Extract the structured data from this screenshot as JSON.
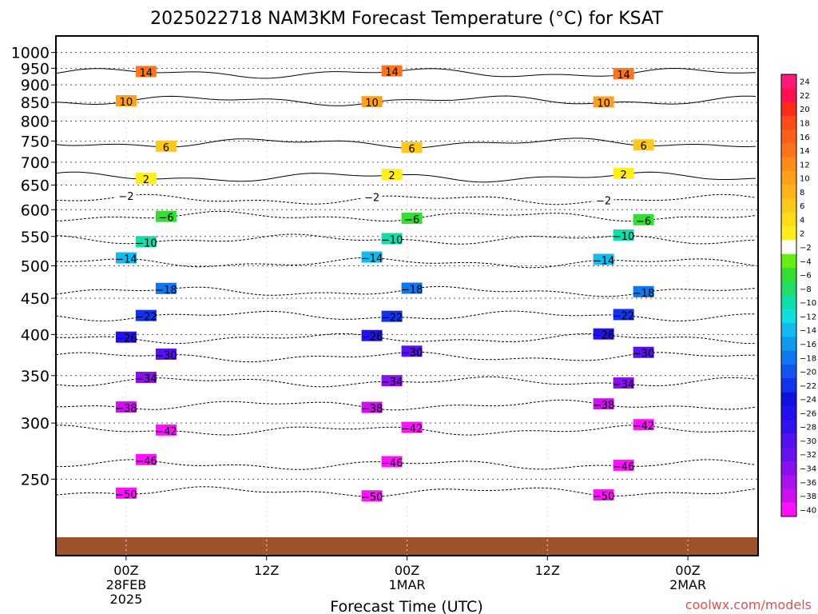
{
  "chart_data": {
    "type": "heatmap",
    "title": "2025022718 NAM3KM Forecast Temperature (°C) for KSAT",
    "xlabel": "Forecast Time (UTC)",
    "ylabel": "",
    "credit": "coolwx.com/models",
    "y_scale": "log",
    "y_range_hpa": [
      1055,
      195
    ],
    "x_range_hours_from_start": [
      0,
      60
    ],
    "grid": true,
    "y_ticks": [
      1000,
      950,
      900,
      850,
      800,
      750,
      700,
      650,
      600,
      550,
      500,
      450,
      400,
      350,
      300,
      250
    ],
    "x_ticks": [
      {
        "hour": 6,
        "lines": [
          "00Z",
          "28FEB",
          "2025"
        ]
      },
      {
        "hour": 18,
        "lines": [
          "12Z"
        ]
      },
      {
        "hour": 30,
        "lines": [
          "00Z",
          "1MAR"
        ]
      },
      {
        "hour": 42,
        "lines": [
          "12Z"
        ]
      },
      {
        "hour": 54,
        "lines": [
          "00Z",
          "2MAR"
        ]
      }
    ],
    "colorbar": {
      "levels": [
        24,
        22,
        20,
        18,
        16,
        14,
        12,
        10,
        8,
        6,
        4,
        2,
        -2,
        -4,
        -6,
        -8,
        -10,
        -12,
        -14,
        -16,
        -18,
        -20,
        -22,
        -24,
        -26,
        -28,
        -30,
        -32,
        -34,
        -36,
        -38,
        -40
      ],
      "colors": [
        "#ff1a7a",
        "#ff1050",
        "#ff2a1a",
        "#ff4a1a",
        "#ff5e1a",
        "#ff741a",
        "#ff8c1a",
        "#ffa01a",
        "#ffb41a",
        "#ffc81a",
        "#ffdc1a",
        "#ffee1a",
        "#ffffff",
        "#66ee11",
        "#33dd33",
        "#22dd66",
        "#11ddaa",
        "#11dddd",
        "#11bbee",
        "#1199ee",
        "#1177ee",
        "#1155ee",
        "#1133ee",
        "#1111dd",
        "#2211ee",
        "#3311ee",
        "#5511ee",
        "#6611ee",
        "#8811ee",
        "#aa11ee",
        "#cc11ee",
        "#ff11ff"
      ]
    },
    "isotherms": [
      {
        "label": -50,
        "pressure": 240
      },
      {
        "label": -46,
        "pressure": 262
      },
      {
        "label": -42,
        "pressure": 293
      },
      {
        "label": -38,
        "pressure": 318
      },
      {
        "label": -34,
        "pressure": 343
      },
      {
        "label": -30,
        "pressure": 372
      },
      {
        "label": -26,
        "pressure": 395
      },
      {
        "label": -22,
        "pressure": 425
      },
      {
        "label": -18,
        "pressure": 460
      },
      {
        "label": -14,
        "pressure": 505
      },
      {
        "label": -10,
        "pressure": 545
      },
      {
        "label": -6,
        "pressure": 587
      },
      {
        "label": -2,
        "pressure": 620
      },
      {
        "label": 2,
        "pressure": 667
      },
      {
        "label": 6,
        "pressure": 745
      },
      {
        "label": 10,
        "pressure": 855
      },
      {
        "label": 14,
        "pressure": 935
      }
    ]
  }
}
